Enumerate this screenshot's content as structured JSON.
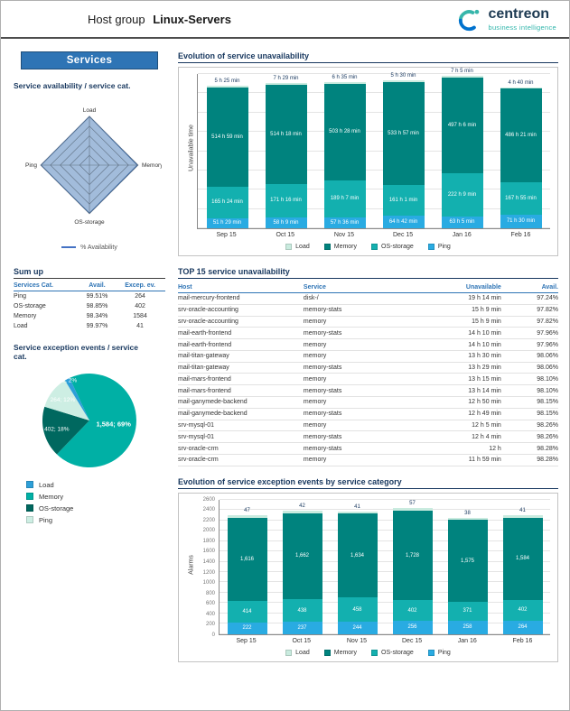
{
  "theme": {
    "accent_blue": "#2e74b5",
    "heading_navy": "#17375e",
    "brand_teal": "#2fb5aa",
    "memory_teal_dark": "#00837e",
    "os_storage_teal": "#13b0af",
    "ping_blue": "#29abe2",
    "load_pale": "#c9ebdf"
  },
  "header": {
    "title_prefix": "Host group",
    "title_bold": "Linux-Servers",
    "logo": {
      "brand": "centreon",
      "tagline": "business intelligence"
    }
  },
  "sidebar": {
    "banner": "Services",
    "availability_heading": "Service availability / service cat.",
    "availability_legend": "% Availability",
    "sumup": {
      "heading": "Sum up",
      "columns": [
        "Services Cat.",
        "Avail.",
        "Excep. ev."
      ],
      "rows": [
        [
          "Ping",
          "99.51%",
          "264"
        ],
        [
          "OS-storage",
          "98.85%",
          "402"
        ],
        [
          "Memory",
          "98.34%",
          "1584"
        ],
        [
          "Load",
          "99.97%",
          "41"
        ]
      ]
    },
    "exception_heading": "Service exception events / service cat.",
    "pie_legend": [
      {
        "label": "Load",
        "color": "#2d9fd8"
      },
      {
        "label": "Memory",
        "color": "#00b0a5"
      },
      {
        "label": "OS-storage",
        "color": "#00685f"
      },
      {
        "label": "Ping",
        "color": "#cdeee3"
      }
    ]
  },
  "main": {
    "unavail_heading": "Evolution of service unavailability",
    "top15_heading": "TOP 15 service unavailability",
    "events_heading": "Evolution of service exception events by service category",
    "top15": {
      "columns": [
        "Host",
        "Service",
        "Unavailable",
        "Avail."
      ],
      "rows": [
        [
          "mail-mercury-frontend",
          "disk-/",
          "19 h 14 min",
          "97.24%"
        ],
        [
          "srv-oracle-accounting",
          "memory-stats",
          "15 h 9 min",
          "97.82%"
        ],
        [
          "srv-oracle-accounting",
          "memory",
          "15 h 9 min",
          "97.82%"
        ],
        [
          "mail-earth-frontend",
          "memory-stats",
          "14 h 10 min",
          "97.96%"
        ],
        [
          "mail-earth-frontend",
          "memory",
          "14 h 10 min",
          "97.96%"
        ],
        [
          "mail-titan-gateway",
          "memory",
          "13 h 30 min",
          "98.06%"
        ],
        [
          "mail-titan-gateway",
          "memory-stats",
          "13 h 29 min",
          "98.06%"
        ],
        [
          "mail-mars-frontend",
          "memory",
          "13 h 15 min",
          "98.10%"
        ],
        [
          "mail-mars-frontend",
          "memory-stats",
          "13 h 14 min",
          "98.10%"
        ],
        [
          "mail-ganymede-backend",
          "memory",
          "12 h 50 min",
          "98.15%"
        ],
        [
          "mail-ganymede-backend",
          "memory-stats",
          "12 h 49 min",
          "98.15%"
        ],
        [
          "srv-mysql-01",
          "memory",
          "12 h 5 min",
          "98.26%"
        ],
        [
          "srv-mysql-01",
          "memory-stats",
          "12 h 4 min",
          "98.26%"
        ],
        [
          "srv-oracle-crm",
          "memory-stats",
          "12 h",
          "98.28%"
        ],
        [
          "srv-oracle-crm",
          "memory",
          "11 h 59 min",
          "98.28%"
        ]
      ]
    }
  },
  "chart_data": [
    {
      "id": "service-unavailability",
      "type": "bar",
      "stacked": true,
      "title": "Evolution of service unavailability",
      "ylabel": "Unavailable time",
      "unit": "hours",
      "categories": [
        "Sep 15",
        "Oct 15",
        "Nov 15",
        "Dec 15",
        "Jan 16",
        "Feb 16"
      ],
      "ylim": [
        0,
        800
      ],
      "ytick_step": 100,
      "ytick_labels": false,
      "series": [
        {
          "name": "Ping",
          "color": "#29abe2",
          "values": [
            51.48,
            58.15,
            57.6,
            64.7,
            63.08,
            71.5
          ],
          "labels": [
            "51 h 29 min",
            "58 h 9 min",
            "57 h 36 min",
            "64 h 42 min",
            "63 h 5 min",
            "71 h 30 min"
          ]
        },
        {
          "name": "OS-storage",
          "color": "#13b0af",
          "values": [
            165.4,
            171.27,
            189.12,
            161.02,
            222.15,
            167.92
          ],
          "labels": [
            "165 h 24 min",
            "171 h 16 min",
            "189 h 7 min",
            "161 h 1 min",
            "222 h 9 min",
            "167 h 55 min"
          ]
        },
        {
          "name": "Memory",
          "color": "#00837e",
          "values": [
            514.98,
            514.3,
            503.47,
            533.95,
            497.1,
            486.35
          ],
          "labels": [
            "514 h 59 min",
            "514 h 18 min",
            "503 h 28 min",
            "533 h 57 min",
            "497 h 6 min",
            "486 h 21 min"
          ]
        },
        {
          "name": "Load",
          "color": "#c9ebdf",
          "label_position": "above",
          "values": [
            5.42,
            7.48,
            6.58,
            5.5,
            7.08,
            4.67
          ],
          "labels": [
            "5 h 25 min",
            "7 h 29 min",
            "6 h 35 min",
            "5 h 30 min",
            "7 h 5 min",
            "4 h 40 min"
          ]
        }
      ],
      "legend": [
        {
          "label": "Load",
          "color": "#c9ebdf"
        },
        {
          "label": "Memory",
          "color": "#00837e"
        },
        {
          "label": "OS-storage",
          "color": "#13b0af"
        },
        {
          "label": "Ping",
          "color": "#29abe2"
        }
      ]
    },
    {
      "id": "exception-pie",
      "type": "pie",
      "title": "Service exception events / service cat.",
      "start_angle_deg": -25,
      "slices": [
        {
          "name": "Memory",
          "value": 1584,
          "label": "1,584; 69%",
          "color": "#00b0a5"
        },
        {
          "name": "OS-storage",
          "value": 402,
          "label": "402; 18%",
          "color": "#00685f"
        },
        {
          "name": "Ping",
          "value": 264,
          "label": "264; 12%",
          "color": "#cdeee3"
        },
        {
          "name": "Load",
          "value": 41,
          "label": "41; 2%",
          "color": "#2d9fd8"
        }
      ]
    },
    {
      "id": "exception-events",
      "type": "bar",
      "stacked": true,
      "title": "Evolution of service exception events by service category",
      "ylabel": "Alarms",
      "categories": [
        "Sep 15",
        "Oct 15",
        "Nov 15",
        "Dec 15",
        "Jan 16",
        "Feb 16"
      ],
      "ylim": [
        0,
        2600
      ],
      "ytick_step": 200,
      "ytick_labels": true,
      "series": [
        {
          "name": "Ping",
          "color": "#29abe2",
          "values": [
            222,
            237,
            244,
            256,
            258,
            264
          ],
          "labels": [
            "222",
            "237",
            "244",
            "256",
            "258",
            "264"
          ]
        },
        {
          "name": "OS-storage",
          "color": "#13b0af",
          "values": [
            414,
            438,
            458,
            402,
            371,
            402
          ],
          "labels": [
            "414",
            "438",
            "458",
            "402",
            "371",
            "402"
          ]
        },
        {
          "name": "Memory",
          "color": "#00837e",
          "values": [
            1616,
            1662,
            1634,
            1728,
            1575,
            1584
          ],
          "labels": [
            "1,616",
            "1,662",
            "1,634",
            "1,728",
            "1,575",
            "1,584"
          ]
        },
        {
          "name": "Load",
          "color": "#c9ebdf",
          "label_position": "above",
          "values": [
            47,
            42,
            41,
            57,
            38,
            41
          ],
          "labels": [
            "47",
            "42",
            "41",
            "57",
            "38",
            "41"
          ]
        }
      ],
      "legend": [
        {
          "label": "Load",
          "color": "#c9ebdf"
        },
        {
          "label": "Memory",
          "color": "#00837e"
        },
        {
          "label": "OS-storage",
          "color": "#13b0af"
        },
        {
          "label": "Ping",
          "color": "#29abe2"
        }
      ]
    },
    {
      "id": "availability-radar",
      "type": "radar",
      "axes": [
        "Load",
        "Memory",
        "OS-storage",
        "Ping"
      ],
      "values": [
        99.97,
        98.34,
        98.85,
        99.51
      ],
      "range": [
        0,
        100
      ],
      "legend_label": "% Availability"
    }
  ]
}
